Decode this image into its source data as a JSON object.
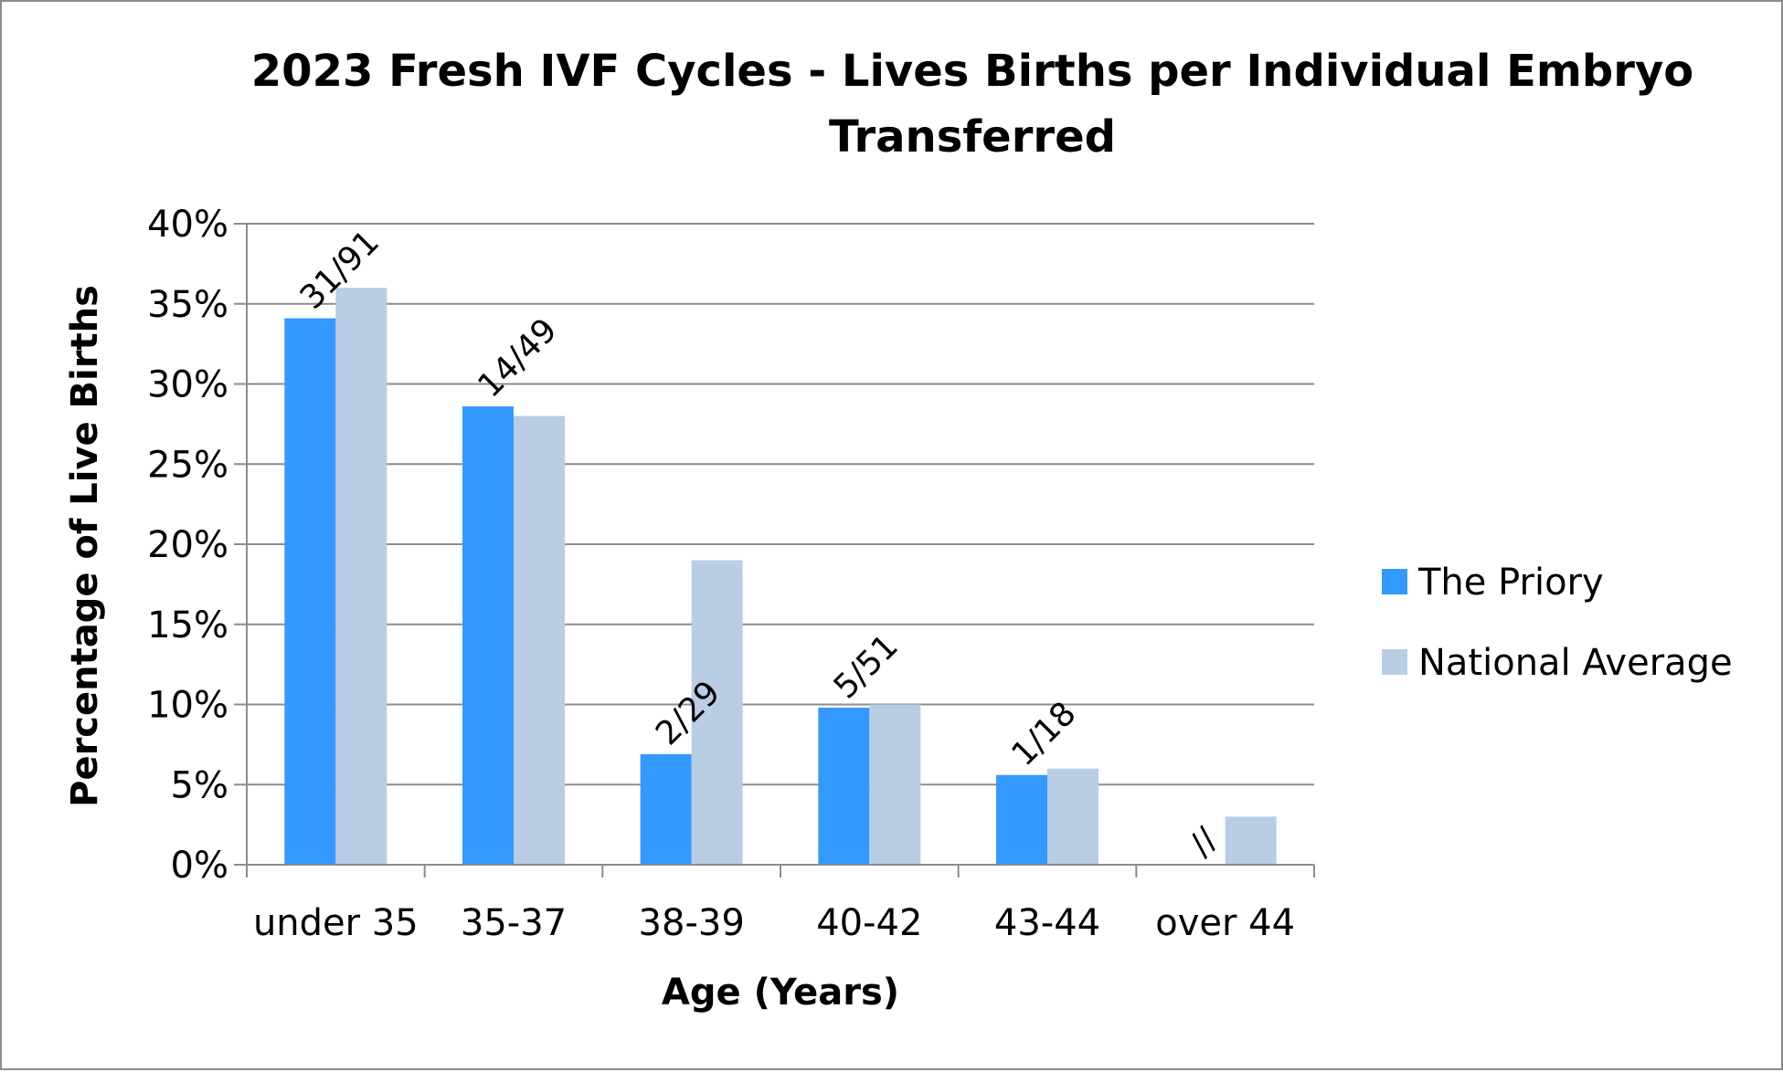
{
  "chart_data": {
    "type": "bar",
    "title_lines": [
      "2023 Fresh IVF Cycles - Lives Births per Individual Embryo",
      "Transferred"
    ],
    "xlabel": "Age (Years)",
    "ylabel": "Percentage of Live Births",
    "categories": [
      "under 35",
      "35-37",
      "38-39",
      "40-42",
      "43-44",
      "over 44"
    ],
    "ylim": [
      0,
      40
    ],
    "yticks": [
      0,
      5,
      10,
      15,
      20,
      25,
      30,
      35,
      40
    ],
    "ytick_labels": [
      "0%",
      "5%",
      "10%",
      "15%",
      "20%",
      "25%",
      "30%",
      "35%",
      "40%"
    ],
    "grid": true,
    "legend_position": "right",
    "series": [
      {
        "name": "The Priory",
        "color": "#3399ff",
        "values": [
          34.1,
          28.6,
          6.9,
          9.8,
          5.6,
          0
        ],
        "labels": [
          "31/91",
          "14/49",
          "2/29",
          "5/51",
          "1/18",
          "//"
        ]
      },
      {
        "name": "National Average",
        "color": "#b9cde5",
        "values": [
          36,
          28,
          19,
          10,
          6,
          3
        ]
      }
    ]
  }
}
